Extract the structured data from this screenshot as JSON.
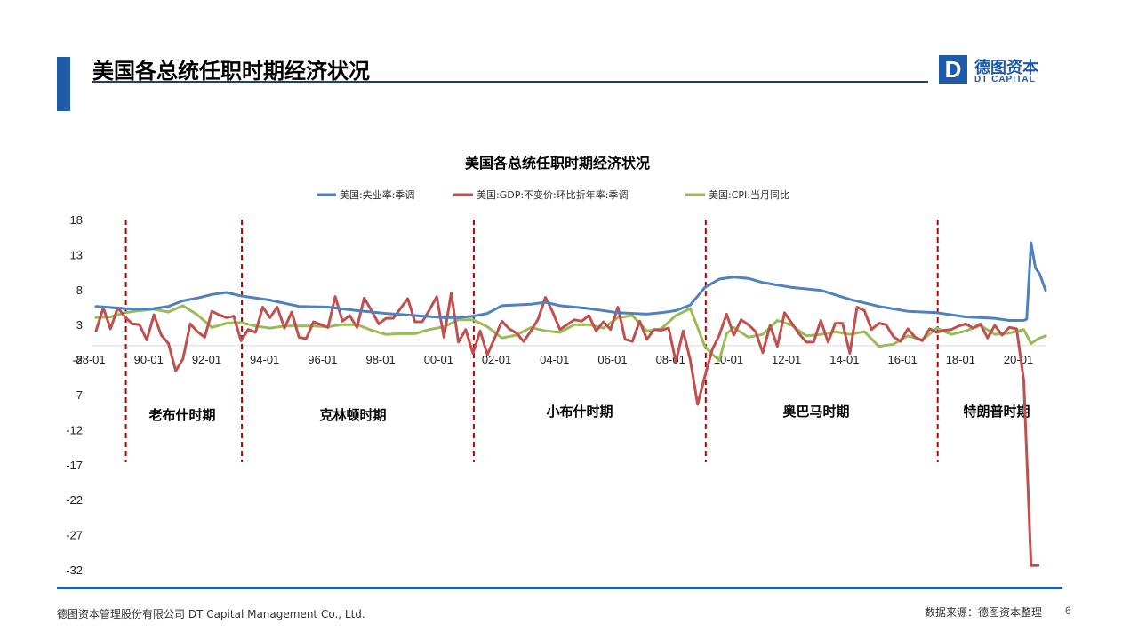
{
  "header": {
    "title": "美国各总统任职时期经济状况"
  },
  "logo": {
    "cn": "德图资本",
    "en": "DT CAPITAL",
    "mark": "D"
  },
  "footer": {
    "company": "德图资本管理股份有限公司  DT Capital  Management  Co., Ltd.",
    "source": "数据来源：德图资本整理",
    "page": "6"
  },
  "colors": {
    "unemployment": "#4f81bd",
    "gdp": "#c0504d",
    "cpi": "#9bbb59",
    "divider": "#c00000",
    "brand": "#1f5aa6"
  },
  "chart_data": {
    "type": "line",
    "title": "美国各总统任职时期经济状况",
    "ylim": [
      -32,
      18
    ],
    "yticks": [
      18,
      13,
      8,
      3,
      -2,
      -7,
      -12,
      -17,
      -22,
      -27,
      -32
    ],
    "xlim": [
      1988.0,
      2020.75
    ],
    "xticks": [
      "88-01",
      "90-01",
      "92-01",
      "94-01",
      "96-01",
      "98-01",
      "00-01",
      "02-01",
      "04-01",
      "06-01",
      "08-01",
      "10-01",
      "12-01",
      "14-01",
      "16-01",
      "18-01",
      "20-01"
    ],
    "grid": false,
    "legend_position": "top",
    "series": [
      {
        "name": "美国:失业率:季调",
        "color": "#4f81bd",
        "x": [
          1988.0,
          1989.0,
          1989.5,
          1990.0,
          1990.5,
          1991.0,
          1991.5,
          1992.0,
          1992.5,
          1993.0,
          1994.0,
          1995.0,
          1996.0,
          1997.0,
          1998.0,
          1999.0,
          2000.0,
          2000.5,
          2001.0,
          2001.5,
          2002.0,
          2003.0,
          2003.5,
          2004.0,
          2005.0,
          2006.0,
          2007.0,
          2007.5,
          2008.0,
          2008.5,
          2009.0,
          2009.5,
          2010.0,
          2010.5,
          2011.0,
          2012.0,
          2013.0,
          2014.0,
          2015.0,
          2016.0,
          2017.0,
          2018.0,
          2019.0,
          2019.5,
          2020.0,
          2020.1,
          2020.25,
          2020.4,
          2020.55,
          2020.75
        ],
        "y": [
          5.6,
          5.3,
          5.2,
          5.3,
          5.6,
          6.4,
          6.8,
          7.3,
          7.6,
          7.1,
          6.5,
          5.6,
          5.5,
          5.0,
          4.6,
          4.3,
          4.0,
          4.0,
          4.2,
          4.6,
          5.7,
          5.9,
          6.2,
          5.7,
          5.3,
          4.7,
          4.5,
          4.7,
          5.0,
          5.8,
          8.3,
          9.5,
          9.8,
          9.6,
          9.0,
          8.3,
          7.9,
          6.6,
          5.6,
          4.9,
          4.7,
          4.1,
          3.9,
          3.6,
          3.6,
          3.8,
          14.7,
          11.1,
          10.2,
          7.9
        ]
      },
      {
        "name": "美国:GDP:不变价:环比折年率:季调",
        "color": "#c0504d",
        "x": [
          1988.0,
          1988.25,
          1988.5,
          1988.75,
          1989.0,
          1989.25,
          1989.5,
          1989.75,
          1990.0,
          1990.25,
          1990.5,
          1990.75,
          1991.0,
          1991.25,
          1991.5,
          1991.75,
          1992.0,
          1992.25,
          1992.5,
          1992.75,
          1993.0,
          1993.25,
          1993.5,
          1993.75,
          1994.0,
          1994.25,
          1994.5,
          1994.75,
          1995.0,
          1995.25,
          1995.5,
          1995.75,
          1996.0,
          1996.25,
          1996.5,
          1996.75,
          1997.0,
          1997.25,
          1997.5,
          1997.75,
          1998.0,
          1998.25,
          1998.5,
          1998.75,
          1999.0,
          1999.25,
          1999.5,
          1999.75,
          2000.0,
          2000.25,
          2000.5,
          2000.75,
          2001.0,
          2001.25,
          2001.5,
          2001.75,
          2002.0,
          2002.25,
          2002.5,
          2002.75,
          2003.0,
          2003.25,
          2003.5,
          2003.75,
          2004.0,
          2004.25,
          2004.5,
          2004.75,
          2005.0,
          2005.25,
          2005.5,
          2005.75,
          2006.0,
          2006.25,
          2006.5,
          2006.75,
          2007.0,
          2007.25,
          2007.5,
          2007.75,
          2008.0,
          2008.25,
          2008.5,
          2008.75,
          2009.0,
          2009.25,
          2009.5,
          2009.75,
          2010.0,
          2010.25,
          2010.5,
          2010.75,
          2011.0,
          2011.25,
          2011.5,
          2011.75,
          2012.0,
          2012.25,
          2012.5,
          2012.75,
          2013.0,
          2013.25,
          2013.5,
          2013.75,
          2014.0,
          2014.25,
          2014.5,
          2014.75,
          2015.0,
          2015.25,
          2015.5,
          2015.75,
          2016.0,
          2016.25,
          2016.5,
          2016.75,
          2017.0,
          2017.25,
          2017.5,
          2017.75,
          2018.0,
          2018.25,
          2018.5,
          2018.75,
          2019.0,
          2019.25,
          2019.5,
          2019.75,
          2020.0,
          2020.25,
          2020.5
        ],
        "y": [
          2.1,
          5.4,
          2.4,
          5.4,
          4.1,
          3.1,
          3.0,
          0.8,
          4.4,
          1.5,
          0.3,
          -3.6,
          -1.9,
          3.1,
          2.0,
          1.2,
          4.9,
          4.4,
          4.0,
          4.2,
          0.7,
          2.3,
          1.9,
          5.5,
          4.0,
          5.5,
          2.5,
          4.8,
          1.2,
          1.0,
          3.4,
          3.0,
          2.6,
          7.0,
          3.5,
          4.3,
          2.6,
          6.8,
          5.0,
          3.1,
          3.9,
          3.9,
          5.3,
          6.7,
          3.4,
          3.4,
          5.1,
          7.0,
          1.2,
          7.5,
          0.5,
          2.3,
          -1.1,
          2.1,
          -1.3,
          1.1,
          3.5,
          2.4,
          1.8,
          0.6,
          2.1,
          3.8,
          6.9,
          4.8,
          2.3,
          3.0,
          3.7,
          3.5,
          4.3,
          2.1,
          3.4,
          2.3,
          5.5,
          0.9,
          0.6,
          3.5,
          0.9,
          2.3,
          2.2,
          2.5,
          -2.3,
          2.1,
          -2.1,
          -8.4,
          -4.4,
          -0.6,
          1.5,
          4.5,
          1.5,
          3.7,
          3.0,
          2.0,
          -1.0,
          2.9,
          -0.1,
          4.7,
          3.2,
          1.7,
          0.5,
          0.5,
          3.6,
          0.5,
          3.2,
          3.2,
          -1.1,
          5.5,
          5.0,
          2.3,
          3.2,
          3.0,
          1.3,
          0.6,
          2.4,
          1.2,
          0.7,
          2.4,
          1.9,
          2.2,
          2.3,
          2.8,
          3.1,
          2.5,
          3.1,
          1.1,
          2.9,
          1.5,
          2.6,
          2.4,
          -5.0,
          -31.4,
          -31.4
        ]
      },
      {
        "name": "美国:CPI:当月同比",
        "color": "#9bbb59",
        "x": [
          1988.0,
          1988.5,
          1989.0,
          1989.5,
          1990.0,
          1990.5,
          1991.0,
          1991.5,
          1992.0,
          1992.5,
          1993.0,
          1993.5,
          1994.0,
          1994.5,
          1995.0,
          1995.5,
          1996.0,
          1996.5,
          1997.0,
          1997.5,
          1998.0,
          1998.5,
          1999.0,
          1999.5,
          2000.0,
          2000.5,
          2001.0,
          2001.5,
          2002.0,
          2002.5,
          2003.0,
          2003.5,
          2004.0,
          2004.5,
          2005.0,
          2005.5,
          2006.0,
          2006.5,
          2007.0,
          2007.5,
          2008.0,
          2008.5,
          2009.0,
          2009.3,
          2009.5,
          2009.75,
          2010.0,
          2010.5,
          2011.0,
          2011.5,
          2012.0,
          2012.5,
          2013.0,
          2013.5,
          2014.0,
          2014.5,
          2015.0,
          2015.5,
          2016.0,
          2016.5,
          2017.0,
          2017.5,
          2018.0,
          2018.5,
          2019.0,
          2019.5,
          2020.0,
          2020.25,
          2020.5,
          2020.75
        ],
        "y": [
          4.0,
          4.1,
          4.7,
          5.0,
          5.2,
          4.8,
          5.7,
          4.4,
          2.6,
          3.2,
          3.3,
          2.8,
          2.5,
          2.8,
          2.8,
          2.8,
          2.7,
          3.0,
          3.0,
          2.2,
          1.6,
          1.7,
          1.7,
          2.3,
          2.7,
          3.7,
          3.7,
          2.7,
          1.1,
          1.5,
          2.6,
          2.1,
          1.9,
          3.0,
          3.0,
          2.5,
          4.0,
          4.3,
          2.1,
          2.4,
          4.3,
          5.3,
          -0.1,
          -1.4,
          -2.1,
          1.7,
          2.6,
          1.2,
          1.6,
          3.6,
          2.9,
          1.4,
          1.6,
          2.0,
          1.6,
          2.0,
          -0.1,
          0.2,
          1.4,
          0.8,
          2.5,
          1.6,
          2.1,
          2.9,
          1.6,
          1.8,
          2.3,
          0.3,
          1.0,
          1.4
        ]
      }
    ],
    "eras": [
      {
        "label": "老布什时期"
      },
      {
        "label": "克林顿时期"
      },
      {
        "label": "小布什时期"
      },
      {
        "label": "奥巴马时期"
      },
      {
        "label": "特朗普时期"
      }
    ],
    "dividers": [
      1989.0,
      1993.0,
      2001.0,
      2009.0,
      2017.0
    ]
  }
}
